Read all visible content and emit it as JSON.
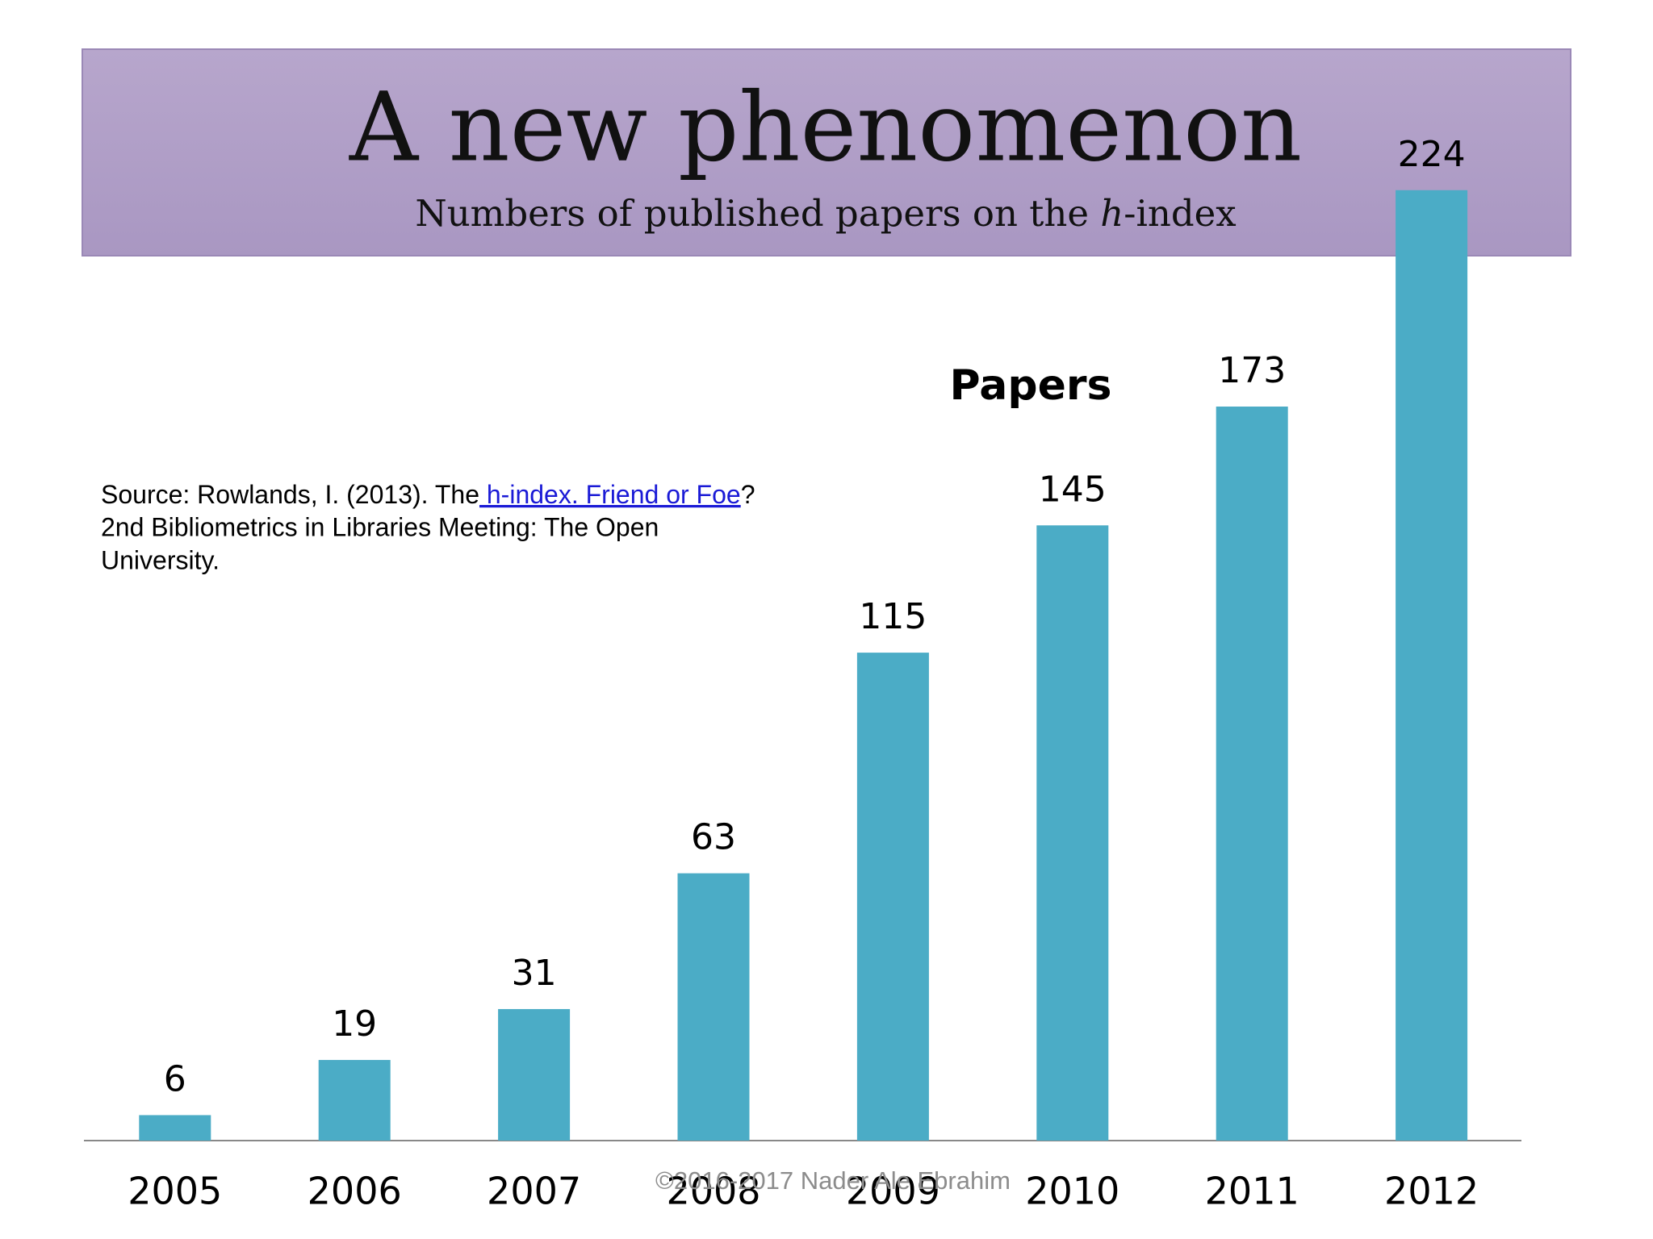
{
  "chart_data": {
    "type": "bar",
    "title": "A new phenomenon",
    "subtitle_parts": [
      "Numbers of published papers on the ",
      "h",
      "-index"
    ],
    "categories": [
      "2005",
      "2006",
      "2007",
      "2008",
      "2009",
      "2010",
      "2011",
      "2012"
    ],
    "series": [
      {
        "name": "Papers",
        "color": "#4bacc6",
        "values": [
          6,
          19,
          31,
          63,
          115,
          145,
          173,
          224
        ]
      }
    ],
    "ylim": [
      0,
      250
    ],
    "source": {
      "line1_before": "Source: Rowlands, I. (2013). The",
      "line1_link": " h-index.  Friend or Foe",
      "line1_after": "?",
      "line2": "2nd Bibliometrics in Libraries Meeting: The Open",
      "line3": "University."
    },
    "footer": "©2016-2017  Nader Ale Ebrahim"
  }
}
